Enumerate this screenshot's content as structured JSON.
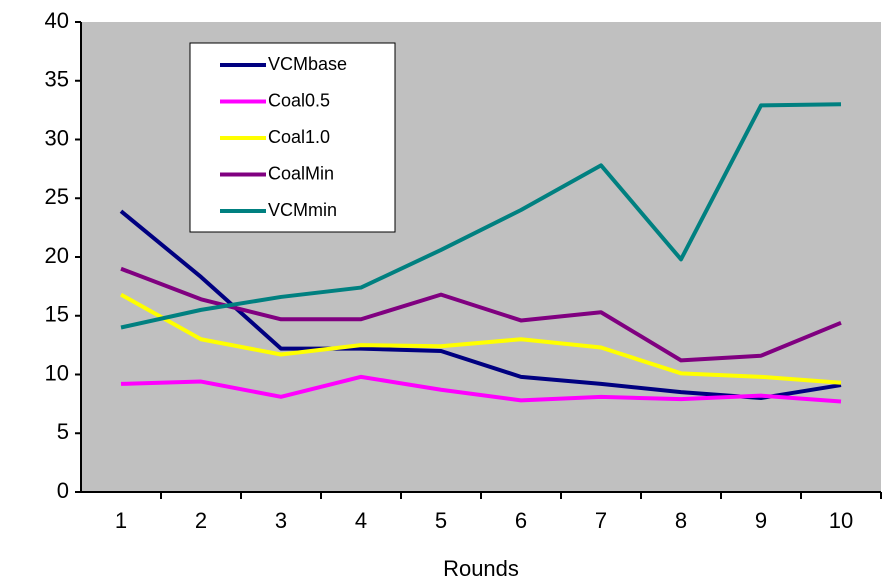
{
  "chart_data": {
    "type": "line",
    "x_label": "Rounds",
    "categories": [
      "1",
      "2",
      "3",
      "4",
      "5",
      "6",
      "7",
      "8",
      "9",
      "10"
    ],
    "series": [
      {
        "name": "VCMbase",
        "color": "#000080",
        "values": [
          23.9,
          18.3,
          12.2,
          12.2,
          12.0,
          9.8,
          9.2,
          8.5,
          8.0,
          9.1
        ]
      },
      {
        "name": "Coal0.5",
        "color": "#ff00ff",
        "values": [
          9.2,
          9.4,
          8.1,
          9.8,
          8.7,
          7.8,
          8.1,
          7.9,
          8.2,
          7.7
        ]
      },
      {
        "name": "Coal1.0",
        "color": "#ffff00",
        "values": [
          16.8,
          13.0,
          11.7,
          12.5,
          12.4,
          13.0,
          12.3,
          10.1,
          9.8,
          9.3
        ]
      },
      {
        "name": "CoalMin",
        "color": "#800080",
        "values": [
          19.0,
          16.4,
          14.7,
          14.7,
          16.8,
          14.6,
          15.3,
          11.2,
          11.6,
          14.4
        ]
      },
      {
        "name": "VCMmin",
        "color": "#008080",
        "values": [
          14.0,
          15.5,
          16.6,
          17.4,
          20.6,
          24.0,
          27.8,
          19.8,
          32.9,
          33.0
        ]
      }
    ],
    "ylim": [
      0,
      40
    ],
    "yticks": [
      0,
      5,
      10,
      15,
      20,
      25,
      30,
      35,
      40
    ],
    "plot_background": "#c0c0c0",
    "legend": "upper left"
  }
}
